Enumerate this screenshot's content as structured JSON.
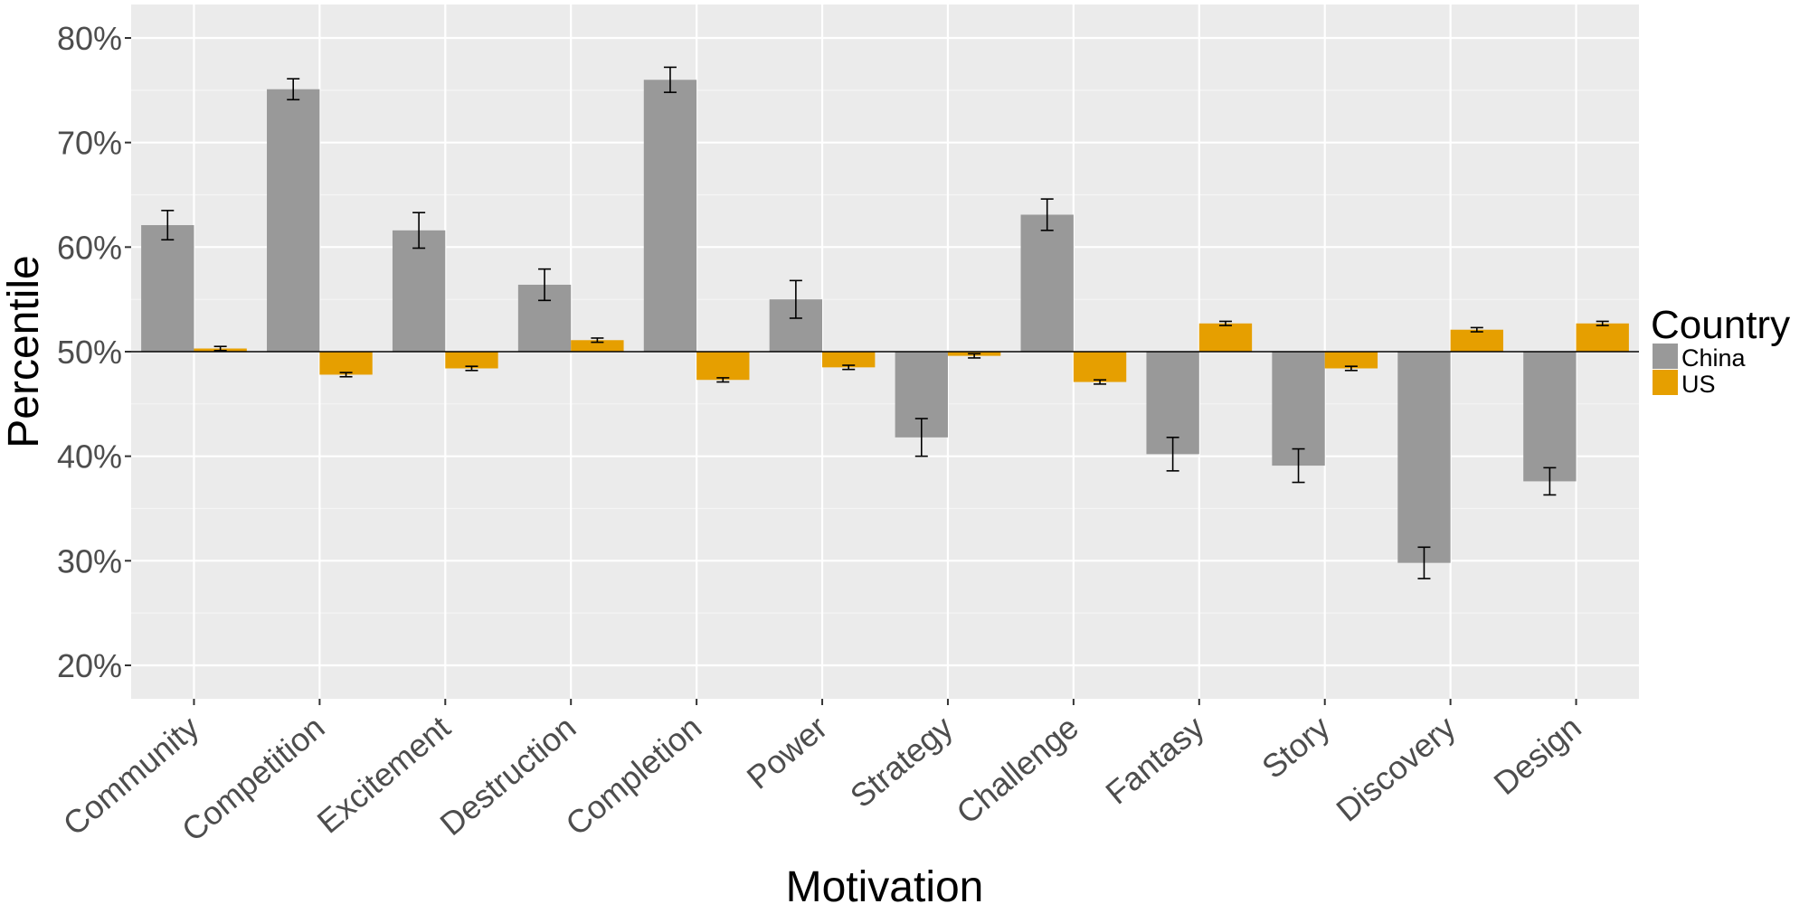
{
  "chart_data": {
    "type": "bar",
    "title": "",
    "xlabel": "Motivation",
    "ylabel": "Percentile",
    "ylim": [
      16.8,
      83.2
    ],
    "yticks": [
      20,
      30,
      40,
      50,
      60,
      70,
      80
    ],
    "ytick_labels": [
      "20%",
      "30%",
      "40%",
      "50%",
      "60%",
      "70%",
      "80%"
    ],
    "baseline": 50,
    "grid": true,
    "legend": {
      "title": "Country",
      "position": "right"
    },
    "categories": [
      "Community",
      "Competition",
      "Excitement",
      "Destruction",
      "Completion",
      "Power",
      "Strategy",
      "Challenge",
      "Fantasy",
      "Story",
      "Discovery",
      "Design"
    ],
    "series": [
      {
        "name": "China",
        "color": "#999999",
        "values": [
          62.1,
          75.1,
          61.6,
          56.4,
          76.0,
          55.0,
          41.8,
          63.1,
          40.2,
          39.1,
          29.8,
          37.6
        ],
        "errors": [
          1.4,
          1.0,
          1.7,
          1.5,
          1.2,
          1.8,
          1.8,
          1.5,
          1.6,
          1.6,
          1.5,
          1.3
        ]
      },
      {
        "name": "US",
        "color": "#E69F00",
        "values": [
          50.3,
          47.8,
          48.4,
          51.1,
          47.3,
          48.5,
          49.6,
          47.1,
          52.7,
          48.4,
          52.1,
          52.7
        ],
        "errors": [
          0.2,
          0.2,
          0.2,
          0.2,
          0.2,
          0.2,
          0.2,
          0.2,
          0.2,
          0.2,
          0.2,
          0.2
        ]
      }
    ]
  }
}
